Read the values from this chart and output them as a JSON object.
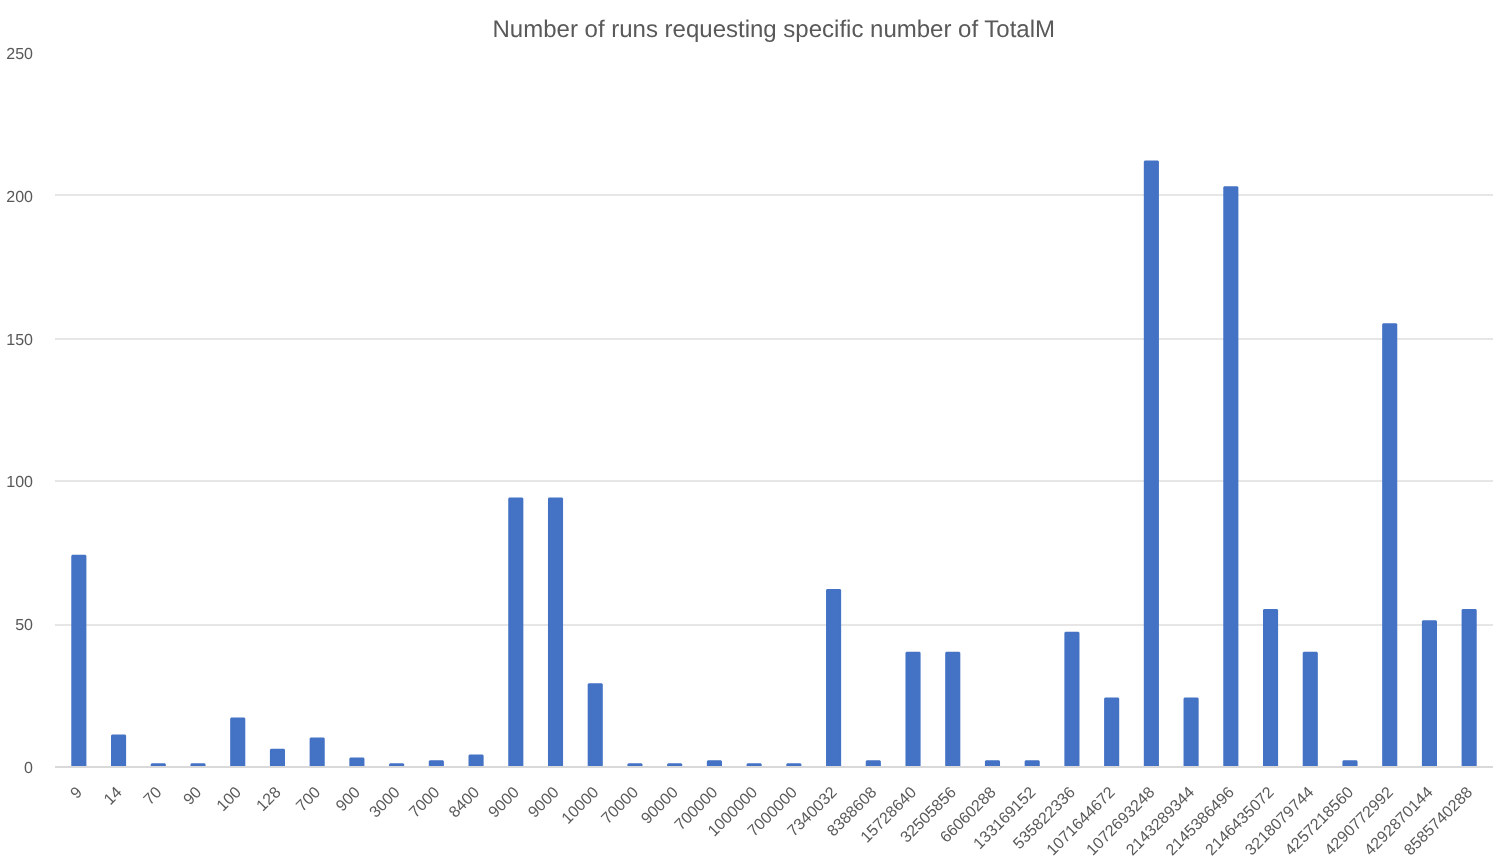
{
  "chart_data": {
    "type": "bar",
    "title": "Number of runs requesting specific number of TotalM",
    "categories": [
      "9",
      "14",
      "70",
      "90",
      "100",
      "128",
      "700",
      "900",
      "3000",
      "7000",
      "8400",
      "9000",
      "9000",
      "10000",
      "70000",
      "90000",
      "700000",
      "1000000",
      "7000000",
      "7340032",
      "8388608",
      "15728640",
      "32505856",
      "66060288",
      "133169152",
      "535822336",
      "1071644672",
      "1072693248",
      "2143289344",
      "2145386496",
      "2146435072",
      "3218079744",
      "4257218560",
      "4290772992",
      "4292870144",
      "8585740288"
    ],
    "values": [
      74,
      11,
      1,
      1,
      17,
      6,
      10,
      3,
      1,
      2,
      4,
      94,
      94,
      29,
      1,
      1,
      2,
      1,
      1,
      62,
      2,
      40,
      40,
      2,
      2,
      47,
      24,
      212,
      24,
      203,
      55,
      40,
      2,
      155,
      51,
      55
    ],
    "color": "#4472c4",
    "ylim": [
      0,
      250
    ],
    "yticks": [
      0,
      50,
      100,
      150,
      200,
      250
    ],
    "grid": "y"
  }
}
